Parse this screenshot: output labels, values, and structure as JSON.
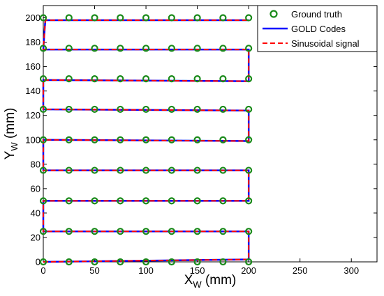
{
  "chart_data": {
    "type": "line",
    "xlabel": {
      "main": "X",
      "sub": "W",
      "unit": " (mm)"
    },
    "ylabel": {
      "main": "Y",
      "sub": "W",
      "unit": " (mm)"
    },
    "xlim": [
      0,
      325
    ],
    "ylim": [
      0,
      210
    ],
    "xticks": [
      0,
      50,
      100,
      150,
      200,
      250,
      300
    ],
    "yticks": [
      0,
      20,
      40,
      60,
      80,
      100,
      120,
      140,
      160,
      180,
      200
    ],
    "grid": false,
    "legend_position": "top-right",
    "legend": [
      "Ground truth",
      "GOLD Codes",
      "Sinusoidal signal"
    ],
    "ground_truth": {
      "name": "Ground truth",
      "color": "#1a8a1a",
      "marker": "circle",
      "x": [
        0,
        25,
        50,
        75,
        100,
        125,
        150,
        175,
        200
      ],
      "y": [
        0,
        25,
        50,
        75,
        100,
        125,
        150,
        175,
        200
      ]
    },
    "series": [
      {
        "name": "GOLD Codes",
        "color": "#0000ff",
        "style": "solid",
        "points": [
          [
            0,
            0
          ],
          [
            200,
            2
          ],
          [
            200,
            25
          ],
          [
            0,
            25
          ],
          [
            0,
            50
          ],
          [
            200,
            50
          ],
          [
            200,
            75
          ],
          [
            0,
            75
          ],
          [
            0,
            100
          ],
          [
            200,
            99
          ],
          [
            200,
            124
          ],
          [
            0,
            125
          ],
          [
            0,
            149
          ],
          [
            200,
            148
          ],
          [
            200,
            174
          ],
          [
            0,
            174
          ],
          [
            2,
            198
          ],
          [
            200,
            198
          ]
        ]
      },
      {
        "name": "Sinusoidal signal",
        "color": "#ff0000",
        "style": "dashed",
        "points": [
          [
            0,
            0
          ],
          [
            200,
            2
          ],
          [
            200,
            25
          ],
          [
            0,
            25
          ],
          [
            0,
            50
          ],
          [
            200,
            50
          ],
          [
            200,
            75
          ],
          [
            0,
            75
          ],
          [
            0,
            100
          ],
          [
            200,
            99
          ],
          [
            200,
            124
          ],
          [
            0,
            125
          ],
          [
            0,
            149
          ],
          [
            200,
            148
          ],
          [
            200,
            174
          ],
          [
            0,
            174
          ],
          [
            2,
            198
          ],
          [
            200,
            198
          ]
        ]
      }
    ]
  }
}
